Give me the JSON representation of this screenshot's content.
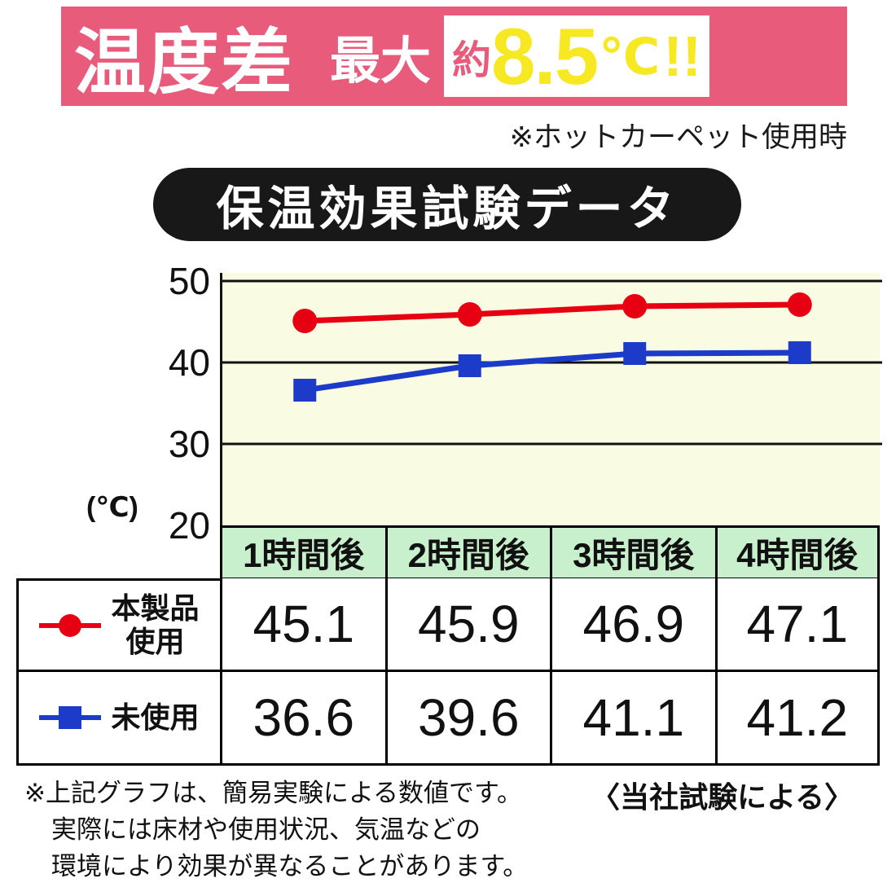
{
  "banner": {
    "title": "温度差",
    "max_label": "最大",
    "approx": "約",
    "value": "8.5",
    "unit": "℃",
    "bang": "!!",
    "bg_color": "#e85b7b",
    "accent_yellow": "#f7e824"
  },
  "usage_note": "※ホットカーペット使用時",
  "section_title": "保温効果試験データ",
  "chart_data": {
    "type": "line",
    "categories": [
      "1時間後",
      "2時間後",
      "3時間後",
      "4時間後"
    ],
    "series": [
      {
        "name": "本製品使用",
        "values": [
          45.1,
          45.9,
          46.9,
          47.1
        ],
        "color": "#e60012",
        "marker": "circle"
      },
      {
        "name": "未使用",
        "values": [
          36.6,
          39.6,
          41.1,
          41.2
        ],
        "color": "#1c3bc8",
        "marker": "square"
      }
    ],
    "ylabel": "(℃)",
    "yticks": [
      50,
      40,
      30,
      20
    ],
    "ylim": [
      20,
      50
    ],
    "grid": true,
    "plot_bg": "#fafbe3",
    "legend_position": "table-left"
  },
  "table": {
    "headers": [
      "1時間後",
      "2時間後",
      "3時間後",
      "4時間後"
    ],
    "header_bg": "#c9f0cc",
    "rows": [
      {
        "legend_lines": [
          "本製品",
          "使用"
        ],
        "values": [
          "45.1",
          "45.9",
          "46.9",
          "47.1"
        ]
      },
      {
        "legend_lines": [
          "未使用"
        ],
        "values": [
          "36.6",
          "39.6",
          "41.1",
          "41.2"
        ]
      }
    ]
  },
  "footnote": {
    "lines": [
      "※上記グラフは、簡易実験による数値です。",
      "実際には床材や使用状況、気温などの",
      "環境により効果が異なることがあります。"
    ],
    "right": "〈当社試験による〉"
  }
}
